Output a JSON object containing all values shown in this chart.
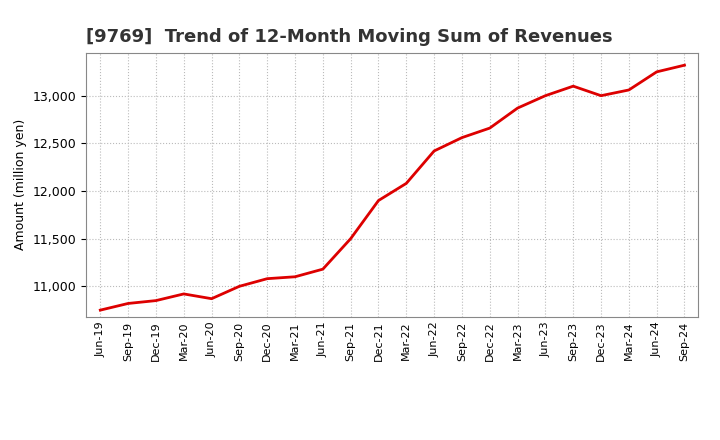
{
  "title": "[9769]  Trend of 12-Month Moving Sum of Revenues",
  "ylabel": "Amount (million yen)",
  "line_color": "#dd0000",
  "line_width": 2.0,
  "background_color": "#ffffff",
  "plot_bg_color": "#ffffff",
  "grid_color": "#bbbbbb",
  "grid_style": ":",
  "ylim": [
    10680,
    13450
  ],
  "yticks": [
    11000,
    11500,
    12000,
    12500,
    13000
  ],
  "x_labels": [
    "Jun-19",
    "Sep-19",
    "Dec-19",
    "Mar-20",
    "Jun-20",
    "Sep-20",
    "Dec-20",
    "Mar-21",
    "Jun-21",
    "Sep-21",
    "Dec-21",
    "Mar-22",
    "Jun-22",
    "Sep-22",
    "Dec-22",
    "Mar-23",
    "Jun-23",
    "Sep-23",
    "Dec-23",
    "Mar-24",
    "Jun-24",
    "Sep-24"
  ],
  "values": [
    10750,
    10820,
    10850,
    10920,
    10870,
    11000,
    11080,
    11100,
    11180,
    11500,
    11900,
    12080,
    12420,
    12560,
    12660,
    12870,
    13000,
    13100,
    13000,
    13060,
    13250,
    13320
  ],
  "title_fontsize": 13,
  "ylabel_fontsize": 9,
  "tick_fontsize": 9,
  "xtick_fontsize": 8
}
